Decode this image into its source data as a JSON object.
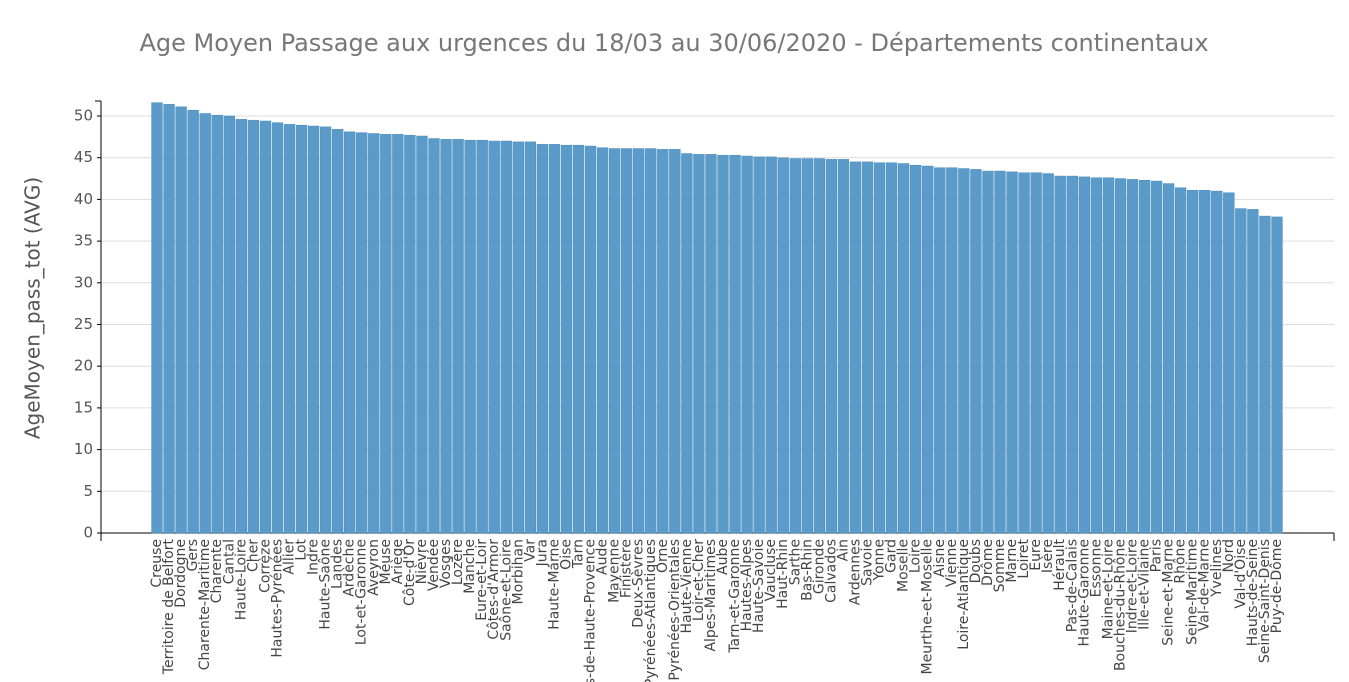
{
  "chart_data": {
    "type": "bar",
    "title": "Age Moyen Passage aux urgences du 18/03 au 30/06/2020 - Départements continentaux",
    "y_label": "AgeMoyen_pass_tot (AVG)",
    "categories": [
      "Creuse",
      "Territoire de Belfort",
      "Dordogne",
      "Gers",
      "Charente-Maritime",
      "Charente",
      "Cantal",
      "Haute-Loire",
      "Cher",
      "Corrèze",
      "Hautes-Pyrénées",
      "Allier",
      "Lot",
      "Indre",
      "Haute-Saône",
      "Landes",
      "Ardèche",
      "Lot-et-Garonne",
      "Aveyron",
      "Meuse",
      "Ariège",
      "Côte-d'Or",
      "Nièvre",
      "Vendée",
      "Vosges",
      "Lozère",
      "Manche",
      "Eure-et-Loir",
      "Côtes-d'Armor",
      "Saône-et-Loire",
      "Morbihan",
      "Var",
      "Jura",
      "Haute-Marne",
      "Oise",
      "Tarn",
      "Alpes-de-Haute-Provence",
      "Aude",
      "Mayenne",
      "Finistère",
      "Deux-Sèvres",
      "Pyrénées-Atlantiques",
      "Orne",
      "Pyrénées-Orientales",
      "Haute-Vienne",
      "Loir-et-Cher",
      "Alpes-Maritimes",
      "Aube",
      "Tarn-et-Garonne",
      "Hautes-Alpes",
      "Haute-Savoie",
      "Vaucluse",
      "Haut-Rhin",
      "Sarthe",
      "Bas-Rhin",
      "Gironde",
      "Calvados",
      "Ain",
      "Ardennes",
      "Savoie",
      "Yonne",
      "Gard",
      "Moselle",
      "Loire",
      "Meurthe-et-Moselle",
      "Aisne",
      "Vienne",
      "Loire-Atlantique",
      "Doubs",
      "Drôme",
      "Somme",
      "Marne",
      "Loiret",
      "Eure",
      "Isère",
      "Hérault",
      "Pas-de-Calais",
      "Haute-Garonne",
      "Essonne",
      "Maine-et-Loire",
      "Bouches-du-Rhône",
      "Indre-et-Loire",
      "Ille-et-Vilaine",
      "Paris",
      "Seine-et-Marne",
      "Rhône",
      "Seine-Maritime",
      "Val-de-Marne",
      "Yvelines",
      "Nord",
      "Val-d'Oise",
      "Hauts-de-Seine",
      "Seine-Saint-Denis",
      "Puy-de-Dôme"
    ],
    "values": [
      51.6,
      51.4,
      51.1,
      50.7,
      50.3,
      50.1,
      50.0,
      49.6,
      49.5,
      49.4,
      49.2,
      49.0,
      48.9,
      48.8,
      48.7,
      48.4,
      48.1,
      48.0,
      47.9,
      47.8,
      47.8,
      47.7,
      47.6,
      47.3,
      47.2,
      47.2,
      47.1,
      47.1,
      47.0,
      47.0,
      46.9,
      46.9,
      46.6,
      46.6,
      46.5,
      46.5,
      46.4,
      46.2,
      46.1,
      46.1,
      46.1,
      46.1,
      46.0,
      46.0,
      45.5,
      45.4,
      45.4,
      45.3,
      45.3,
      45.2,
      45.1,
      45.1,
      45.0,
      44.9,
      44.9,
      44.9,
      44.8,
      44.8,
      44.5,
      44.5,
      44.4,
      44.4,
      44.3,
      44.1,
      44.0,
      43.8,
      43.8,
      43.7,
      43.6,
      43.4,
      43.4,
      43.3,
      43.2,
      43.2,
      43.1,
      42.8,
      42.8,
      42.7,
      42.6,
      42.6,
      42.5,
      42.4,
      42.3,
      42.2,
      41.9,
      41.4,
      41.1,
      41.1,
      41.0,
      40.8,
      38.9,
      38.8,
      38.0,
      37.9
    ],
    "color": "#5a9bc9",
    "ylim": [
      0,
      51.8
    ],
    "yticks": [
      0,
      5,
      10,
      15,
      20,
      25,
      30,
      35,
      40,
      45,
      50
    ],
    "grid": true
  }
}
